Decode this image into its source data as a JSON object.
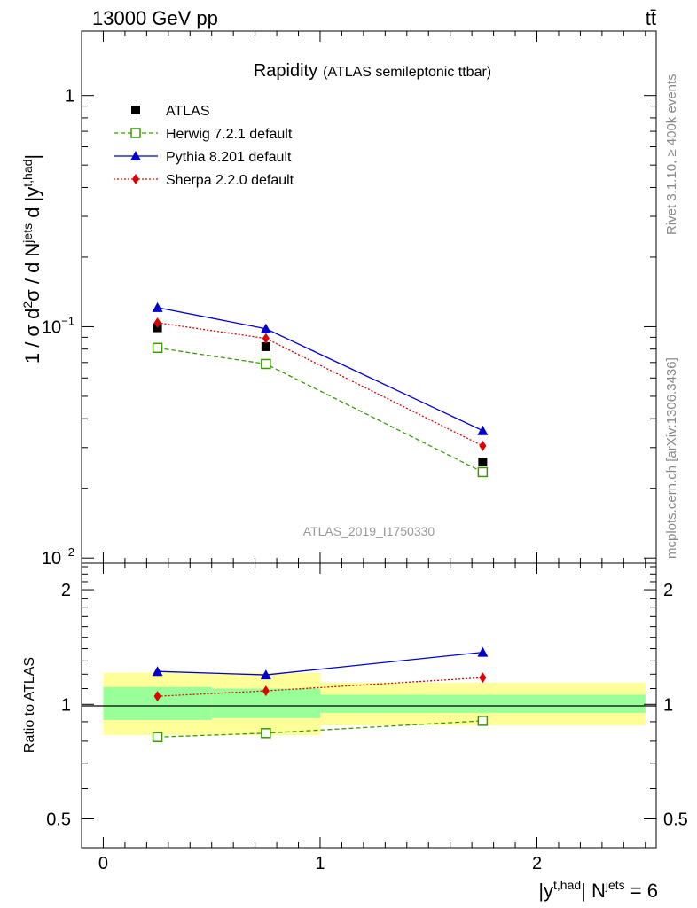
{
  "header": {
    "energy_label": "13000 GeV pp",
    "process_label": "tt̄"
  },
  "plot_title": {
    "main": "Rapidity",
    "sub": "(ATLAS semileptonic ttbar)"
  },
  "watermark": "ATLAS_2019_I1750330",
  "side_labels": {
    "rivet": "Rivet 3.1.10, ≥ 400k events",
    "source": "mcplots.cern.ch [arXiv:1306.3436]"
  },
  "chart_data": [
    {
      "type": "line",
      "panel": "main",
      "yscale": "log",
      "ylim": [
        0.0095,
        1.9
      ],
      "xlim": [
        -0.1,
        2.55
      ],
      "ylabel": "1 / σ d²σ / d N^jets d |y^t,had|",
      "yticks": [
        {
          "value": 0.01,
          "base": "10",
          "exp": "−2"
        },
        {
          "value": 0.1,
          "base": "10",
          "exp": "−1"
        },
        {
          "value": 1,
          "base": "1",
          "exp": ""
        }
      ],
      "x": [
        0.25,
        0.75,
        1.75
      ],
      "series": [
        {
          "name": "ATLAS",
          "values": [
            0.099,
            0.082,
            0.026
          ],
          "color": "#000000",
          "marker": "square",
          "line": "none"
        },
        {
          "name": "Herwig 7.2.1 default",
          "values": [
            0.081,
            0.069,
            0.0235
          ],
          "color": "#3a9a00",
          "marker": "open-square",
          "line": "dashed"
        },
        {
          "name": "Pythia 8.201 default",
          "values": [
            0.121,
            0.098,
            0.0355
          ],
          "color": "#0000cc",
          "marker": "triangle",
          "line": "solid"
        },
        {
          "name": "Sherpa 2.2.0 default",
          "values": [
            0.104,
            0.089,
            0.0305
          ],
          "color": "#e00000",
          "marker": "diamond",
          "line": "dotted"
        }
      ],
      "legend_placement": "top-left"
    },
    {
      "type": "line",
      "panel": "ratio",
      "ylim": [
        0.42,
        2.35
      ],
      "xlim": [
        -0.1,
        2.55
      ],
      "ylabel": "Ratio to ATLAS",
      "xlabel": "|y^t,had| N^jets = 6",
      "yticks": [
        0.5,
        1,
        2
      ],
      "ytick_labels": [
        "0.5",
        "1",
        "2"
      ],
      "xticks": [
        0,
        1,
        2
      ],
      "xtick_labels": [
        "0",
        "1",
        "2"
      ],
      "x": [
        0.25,
        0.75,
        1.75
      ],
      "bands": [
        {
          "x_start": 0.0,
          "x_end": 0.5,
          "yellow": [
            0.83,
            1.21
          ],
          "green": [
            0.91,
            1.11
          ]
        },
        {
          "x_start": 0.5,
          "x_end": 1.0,
          "yellow": [
            0.83,
            1.21
          ],
          "green": [
            0.92,
            1.1
          ]
        },
        {
          "x_start": 1.0,
          "x_end": 2.5,
          "yellow": [
            0.88,
            1.14
          ],
          "green": [
            0.95,
            1.06
          ]
        }
      ],
      "band_colors": {
        "yellow": "#ffff99",
        "green": "#99ff99"
      },
      "series": [
        {
          "name": "Herwig 7.2.1 default",
          "values": [
            0.82,
            0.84,
            0.905
          ],
          "color": "#3a9a00",
          "marker": "open-square",
          "line": "dashed"
        },
        {
          "name": "Pythia 8.201 default",
          "values": [
            1.22,
            1.195,
            1.37
          ],
          "color": "#0000cc",
          "marker": "triangle",
          "line": "solid"
        },
        {
          "name": "Sherpa 2.2.0 default",
          "values": [
            1.05,
            1.085,
            1.175
          ],
          "color": "#e00000",
          "marker": "diamond",
          "line": "dotted"
        }
      ]
    }
  ]
}
